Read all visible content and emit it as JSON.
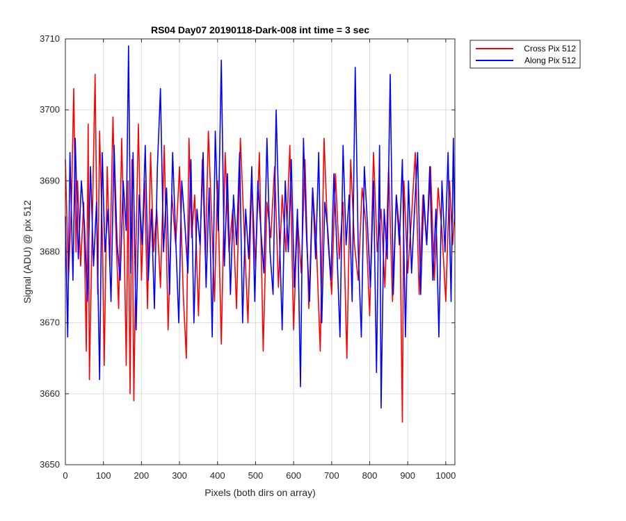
{
  "chart_data": {
    "type": "line",
    "title": "RS04 Day07 20190118-Dark-008 int time = 3 sec",
    "xlabel": "Pixels (both dirs on array)",
    "ylabel": "Signal (ADU) @ pix 512",
    "xlim": [
      0,
      1024
    ],
    "ylim": [
      3650,
      3710
    ],
    "xticks": [
      0,
      100,
      200,
      300,
      400,
      500,
      600,
      700,
      800,
      900,
      1000
    ],
    "yticks": [
      3650,
      3660,
      3670,
      3680,
      3690,
      3700,
      3710
    ],
    "grid": true,
    "legend_position": "outside-top-right",
    "series": [
      {
        "name": "Cross Pix 512",
        "color": "#ff0000",
        "x": [
          0,
          8,
          16,
          22,
          28,
          32,
          40,
          48,
          55,
          60,
          63,
          70,
          78,
          85,
          90,
          97,
          102,
          110,
          117,
          125,
          132,
          140,
          148,
          155,
          160,
          165,
          170,
          175,
          180,
          186,
          192,
          200,
          208,
          216,
          224,
          232,
          240,
          250,
          260,
          270,
          280,
          290,
          300,
          310,
          318,
          325,
          332,
          340,
          350,
          360,
          368,
          376,
          385,
          392,
          400,
          410,
          420,
          430,
          440,
          450,
          460,
          470,
          480,
          490,
          500,
          510,
          520,
          530,
          540,
          550,
          560,
          570,
          580,
          590,
          600,
          610,
          620,
          630,
          640,
          650,
          660,
          670,
          680,
          690,
          700,
          710,
          720,
          730,
          740,
          750,
          760,
          770,
          780,
          790,
          800,
          810,
          820,
          830,
          840,
          850,
          860,
          870,
          880,
          886,
          890,
          900,
          910,
          920,
          930,
          940,
          950,
          960,
          970,
          980,
          990,
          1000,
          1010,
          1018,
          1023
        ],
        "y": [
          3693,
          3676,
          3687,
          3703,
          3680,
          3690,
          3678,
          3687,
          3666,
          3698,
          3662,
          3682,
          3705,
          3674,
          3697,
          3683,
          3664,
          3692,
          3678,
          3699,
          3684,
          3672,
          3696,
          3680,
          3664,
          3690,
          3660,
          3693,
          3659,
          3682,
          3698,
          3676,
          3690,
          3672,
          3694,
          3680,
          3686,
          3675,
          3695,
          3669,
          3688,
          3681,
          3692,
          3674,
          3665,
          3696,
          3682,
          3688,
          3671,
          3693,
          3679,
          3697,
          3684,
          3673,
          3690,
          3667,
          3694,
          3680,
          3686,
          3672,
          3696,
          3683,
          3670,
          3690,
          3678,
          3694,
          3666,
          3687,
          3682,
          3692,
          3675,
          3688,
          3680,
          3695,
          3669,
          3685,
          3677,
          3693,
          3672,
          3689,
          3681,
          3666,
          3696,
          3682,
          3674,
          3691,
          3679,
          3687,
          3665,
          3693,
          3681,
          3676,
          3689,
          3684,
          3671,
          3694,
          3680,
          3686,
          3675,
          3692,
          3673,
          3688,
          3682,
          3656,
          3690,
          3677,
          3685,
          3694,
          3674,
          3688,
          3681,
          3692,
          3676,
          3689,
          3683,
          3673,
          3690,
          3681,
          3685
        ]
      },
      {
        "name": "Along Pix 512",
        "color": "#0000ff",
        "x": [
          0,
          6,
          12,
          20,
          26,
          34,
          42,
          50,
          58,
          66,
          74,
          82,
          90,
          97,
          104,
          112,
          120,
          128,
          136,
          144,
          152,
          160,
          166,
          172,
          178,
          186,
          194,
          202,
          210,
          218,
          226,
          234,
          242,
          250,
          258,
          266,
          274,
          282,
          290,
          298,
          306,
          314,
          322,
          330,
          338,
          346,
          354,
          362,
          370,
          378,
          386,
          394,
          402,
          410,
          418,
          426,
          434,
          442,
          450,
          458,
          466,
          474,
          482,
          490,
          498,
          506,
          514,
          522,
          530,
          538,
          546,
          554,
          562,
          570,
          578,
          586,
          594,
          602,
          610,
          618,
          626,
          634,
          642,
          650,
          658,
          666,
          674,
          682,
          690,
          698,
          706,
          714,
          722,
          730,
          738,
          746,
          754,
          762,
          770,
          778,
          786,
          794,
          802,
          810,
          818,
          826,
          830,
          838,
          846,
          854,
          862,
          870,
          878,
          886,
          894,
          902,
          910,
          918,
          926,
          934,
          942,
          950,
          958,
          966,
          974,
          982,
          990,
          998,
          1006,
          1014,
          1020,
          1023
        ],
        "y": [
          3685,
          3668,
          3694,
          3676,
          3696,
          3679,
          3690,
          3684,
          3673,
          3692,
          3678,
          3687,
          3662,
          3694,
          3680,
          3686,
          3673,
          3695,
          3681,
          3676,
          3690,
          3683,
          3709,
          3677,
          3694,
          3669,
          3688,
          3681,
          3695,
          3676,
          3686,
          3672,
          3692,
          3703,
          3680,
          3689,
          3674,
          3694,
          3682,
          3670,
          3690,
          3684,
          3677,
          3693,
          3670,
          3686,
          3681,
          3694,
          3675,
          3689,
          3668,
          3697,
          3683,
          3707,
          3678,
          3691,
          3674,
          3688,
          3681,
          3694,
          3670,
          3686,
          3679,
          3692,
          3673,
          3690,
          3683,
          3677,
          3696,
          3680,
          3674,
          3700,
          3684,
          3669,
          3690,
          3680,
          3693,
          3675,
          3686,
          3661,
          3696,
          3682,
          3673,
          3689,
          3679,
          3694,
          3670,
          3687,
          3683,
          3676,
          3691,
          3680,
          3668,
          3695,
          3681,
          3688,
          3673,
          3706,
          3680,
          3668,
          3692,
          3684,
          3675,
          3690,
          3663,
          3695,
          3658,
          3686,
          3679,
          3705,
          3674,
          3688,
          3681,
          3693,
          3668,
          3690,
          3677,
          3686,
          3694,
          3674,
          3688,
          3681,
          3692,
          3676,
          3686,
          3668,
          3690,
          3680,
          3694,
          3673,
          3696,
          3684
        ]
      }
    ]
  }
}
